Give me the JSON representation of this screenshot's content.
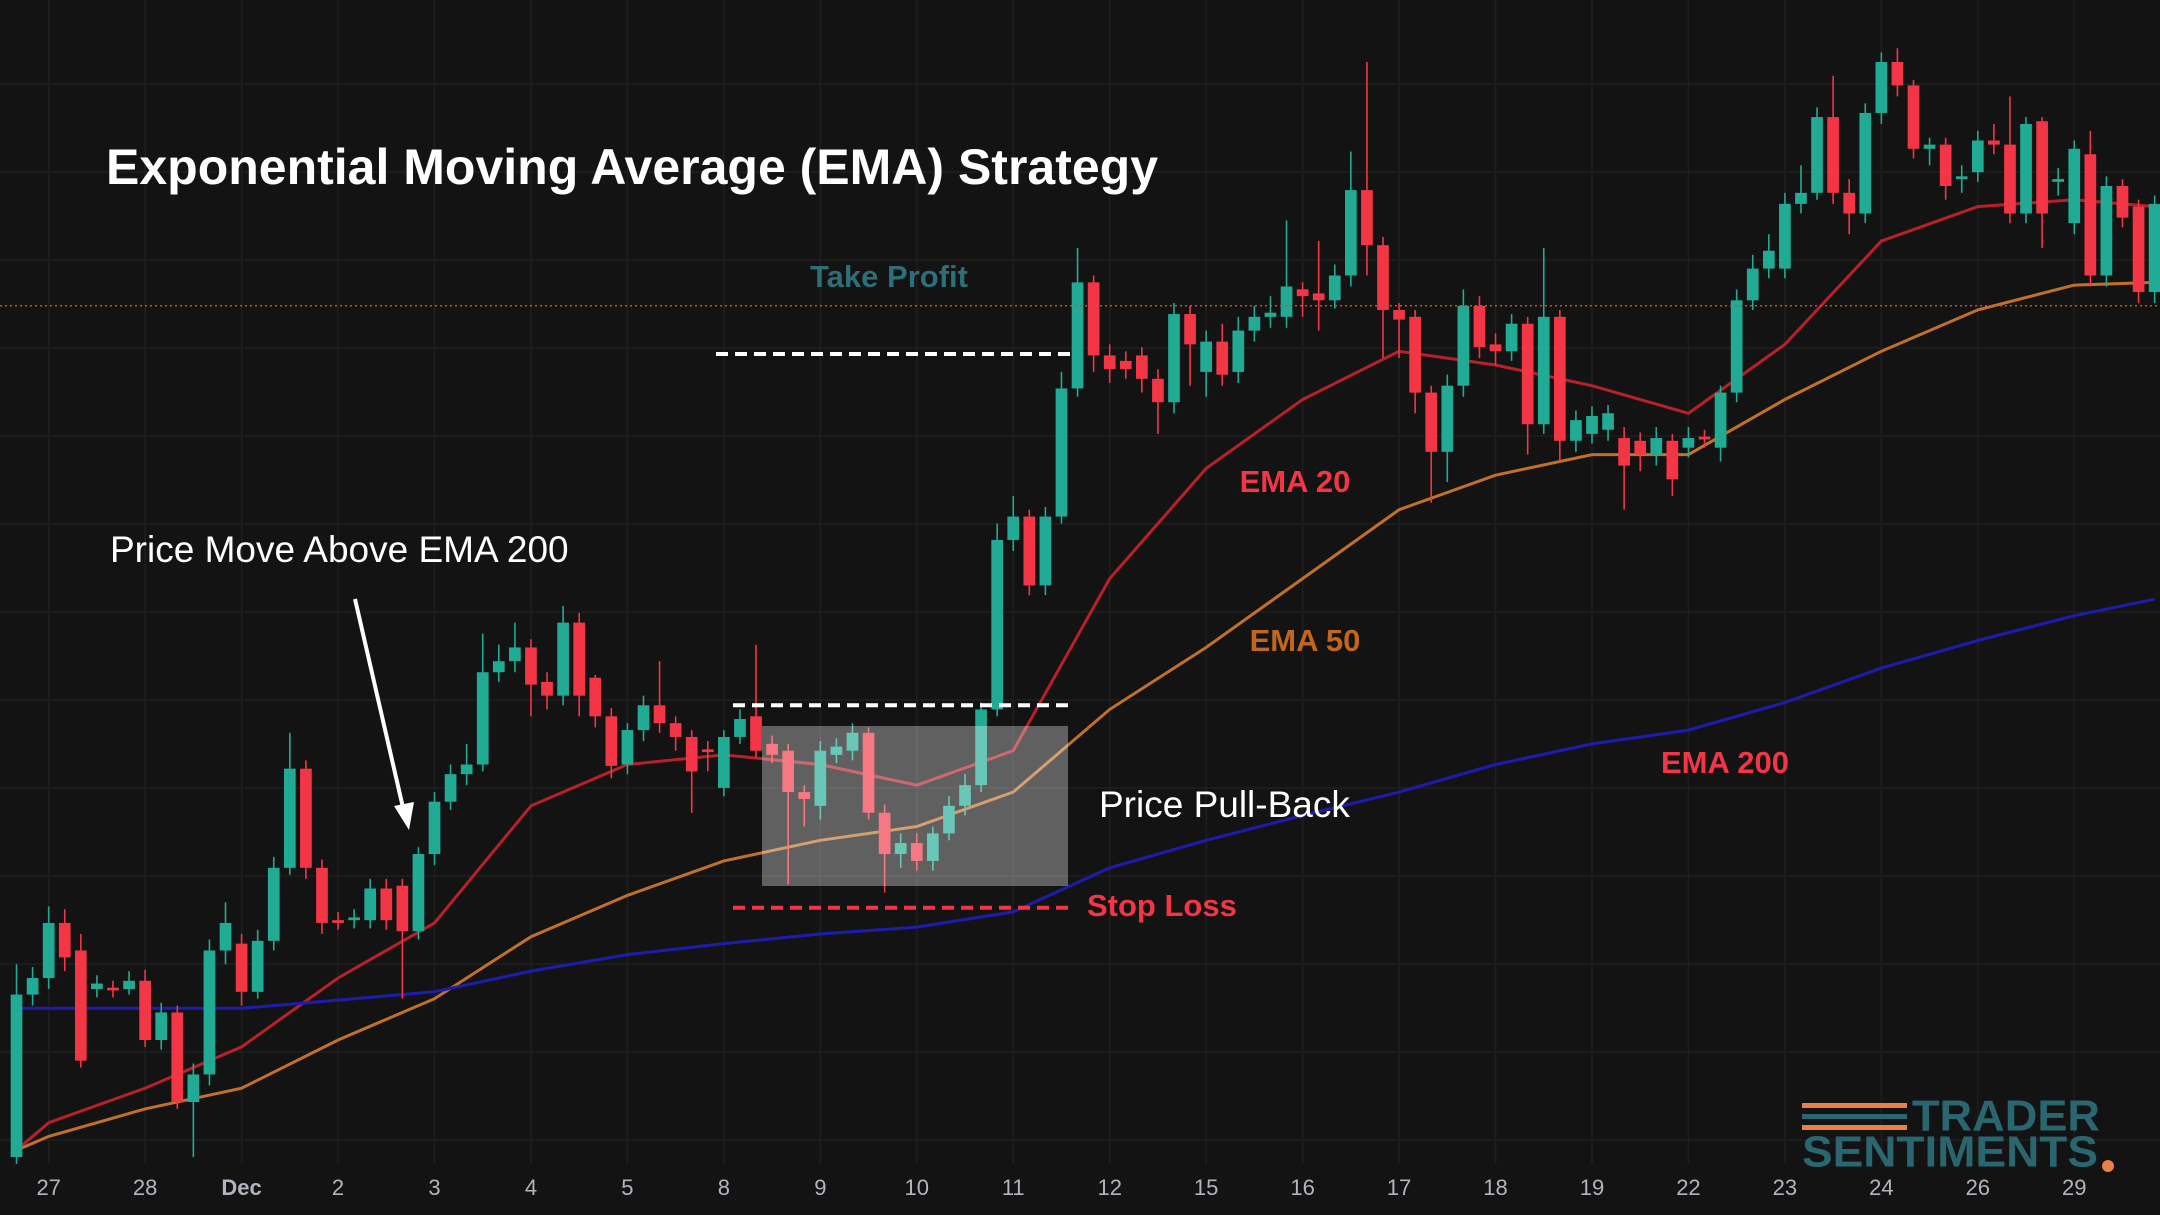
{
  "chart_data": {
    "type": "candlestick",
    "title": "Exponential Moving Average (EMA) Strategy",
    "ylim": [
      55,
      900
    ],
    "categories": [
      null,
      null,
      "27",
      null,
      null,
      null,
      null,
      null,
      "28",
      null,
      null,
      null,
      null,
      null,
      "Dec",
      null,
      null,
      null,
      null,
      null,
      "2",
      null,
      null,
      null,
      null,
      null,
      "3",
      null,
      null,
      null,
      null,
      null,
      "4",
      null,
      null,
      null,
      null,
      null,
      "5",
      null,
      null,
      null,
      null,
      null,
      "8",
      null,
      null,
      null,
      null,
      null,
      "9",
      null,
      null,
      null,
      null,
      null,
      "10",
      null,
      null,
      null,
      null,
      null,
      "11",
      null,
      null,
      null,
      null,
      null,
      "12",
      null,
      null,
      null,
      null,
      null,
      "15",
      null,
      null,
      null,
      null,
      null,
      "16",
      null,
      null,
      null,
      null,
      null,
      "17",
      null,
      null,
      null,
      null,
      null,
      "18",
      null,
      null,
      null,
      null,
      null,
      "19",
      null,
      null,
      null,
      null,
      null,
      "22",
      null,
      null,
      null,
      null,
      null,
      "23",
      null,
      null,
      null,
      null,
      null,
      "24",
      null,
      null,
      null,
      null,
      null,
      "26",
      null,
      null,
      null,
      null,
      null,
      "29",
      null,
      null,
      null,
      null,
      null
    ],
    "open": [
      60,
      178,
      190,
      230,
      210,
      182,
      183,
      182,
      188,
      145,
      165,
      100,
      120,
      210,
      215,
      180,
      217,
      270,
      342,
      270,
      232,
      232,
      232,
      255,
      257,
      224,
      280,
      318,
      338,
      345,
      412,
      420,
      430,
      405,
      395,
      448,
      408,
      380,
      345,
      370,
      388,
      375,
      365,
      356,
      328,
      365,
      380,
      360,
      355,
      325,
      315,
      352,
      355,
      368,
      310,
      280,
      288,
      275,
      295,
      315,
      330,
      385,
      508,
      525,
      475,
      525,
      618,
      695,
      642,
      638,
      642,
      625,
      608,
      672,
      630,
      652,
      630,
      660,
      670,
      670,
      690,
      687,
      682,
      700,
      762,
      722,
      675,
      670,
      615,
      572,
      620,
      678,
      650,
      645,
      665,
      592,
      670,
      580,
      585,
      588,
      582,
      580,
      570,
      580,
      575,
      583,
      575,
      615,
      682,
      705,
      705,
      752,
      760,
      815,
      760,
      745,
      818,
      855,
      838,
      792,
      795,
      770,
      775,
      798,
      795,
      745,
      812,
      768,
      738,
      788,
      700,
      765,
      750,
      688
    ],
    "high": [
      200,
      198,
      242,
      240,
      222,
      192,
      188,
      195,
      196,
      172,
      170,
      128,
      218,
      245,
      222,
      225,
      278,
      368,
      348,
      276,
      238,
      240,
      262,
      262,
      262,
      285,
      325,
      345,
      360,
      440,
      432,
      448,
      436,
      412,
      460,
      455,
      410,
      386,
      375,
      395,
      420,
      380,
      370,
      362,
      370,
      385,
      432,
      366,
      360,
      330,
      362,
      364,
      375,
      372,
      316,
      295,
      295,
      300,
      322,
      338,
      390,
      520,
      540,
      530,
      532,
      630,
      720,
      700,
      650,
      645,
      648,
      632,
      680,
      678,
      660,
      665,
      670,
      678,
      685,
      740,
      695,
      725,
      708,
      790,
      855,
      728,
      680,
      675,
      620,
      628,
      690,
      685,
      658,
      672,
      670,
      720,
      675,
      602,
      605,
      606,
      590,
      586,
      590,
      585,
      590,
      588,
      620,
      690,
      715,
      730,
      760,
      780,
      822,
      845,
      770,
      825,
      862,
      865,
      842,
      800,
      800,
      780,
      805,
      810,
      830,
      815,
      815,
      778,
      798,
      805,
      772,
      770,
      755,
      758
    ],
    "low": [
      55,
      170,
      182,
      195,
      125,
      176,
      176,
      178,
      140,
      138,
      95,
      60,
      112,
      200,
      170,
      175,
      210,
      265,
      262,
      222,
      225,
      226,
      226,
      225,
      175,
      218,
      272,
      312,
      330,
      340,
      405,
      412,
      380,
      385,
      388,
      380,
      372,
      335,
      338,
      362,
      368,
      355,
      310,
      340,
      322,
      360,
      350,
      346,
      258,
      300,
      305,
      346,
      348,
      305,
      252,
      270,
      268,
      268,
      290,
      308,
      325,
      380,
      500,
      468,
      468,
      520,
      612,
      630,
      622,
      625,
      615,
      585,
      600,
      620,
      612,
      620,
      622,
      652,
      662,
      662,
      670,
      660,
      676,
      692,
      700,
      640,
      640,
      600,
      535,
      550,
      612,
      640,
      635,
      638,
      570,
      585,
      565,
      572,
      578,
      580,
      530,
      558,
      562,
      540,
      568,
      575,
      565,
      608,
      675,
      698,
      698,
      745,
      755,
      752,
      730,
      738,
      810,
      830,
      785,
      780,
      755,
      760,
      768,
      788,
      738,
      738,
      720,
      758,
      730,
      692,
      692,
      735,
      680,
      680
    ],
    "close": [
      178,
      190,
      230,
      205,
      130,
      186,
      181,
      188,
      145,
      165,
      100,
      120,
      210,
      230,
      180,
      217,
      270,
      342,
      270,
      230,
      230,
      234,
      255,
      232,
      224,
      280,
      318,
      338,
      345,
      412,
      420,
      430,
      403,
      395,
      448,
      395,
      380,
      344,
      370,
      388,
      375,
      365,
      340,
      354,
      365,
      378,
      355,
      352,
      325,
      320,
      355,
      358,
      368,
      310,
      280,
      288,
      275,
      295,
      315,
      330,
      385,
      508,
      525,
      475,
      525,
      618,
      695,
      642,
      632,
      632,
      625,
      608,
      672,
      650,
      652,
      628,
      660,
      670,
      673,
      692,
      685,
      682,
      700,
      762,
      722,
      675,
      668,
      615,
      572,
      620,
      678,
      648,
      645,
      665,
      592,
      670,
      580,
      595,
      598,
      600,
      562,
      570,
      582,
      552,
      582,
      581,
      615,
      682,
      705,
      718,
      752,
      760,
      815,
      760,
      745,
      818,
      855,
      838,
      792,
      795,
      765,
      772,
      798,
      795,
      745,
      810,
      745,
      770,
      792,
      700,
      765,
      742,
      688,
      752
    ],
    "up_color": "#22ab94",
    "down_color": "#f23645",
    "series": [
      {
        "name": "EMA 20",
        "color": "#b8202a",
        "label_color": "#f23645",
        "x": [
          0,
          2,
          8,
          14,
          20,
          26,
          32,
          38,
          44,
          50,
          56,
          62,
          68,
          74,
          80,
          86,
          92,
          98,
          104,
          110,
          116,
          122,
          128,
          133
        ],
        "values": [
          65,
          85,
          110,
          140,
          190,
          230,
          315,
          345,
          352,
          345,
          330,
          355,
          480,
          560,
          610,
          645,
          635,
          620,
          600,
          650,
          725,
          750,
          755,
          750
        ]
      },
      {
        "name": "EMA 50",
        "color": "#c0702a",
        "label_color": "#c2661c",
        "x": [
          0,
          2,
          8,
          14,
          20,
          26,
          32,
          38,
          44,
          50,
          56,
          62,
          68,
          74,
          80,
          86,
          92,
          98,
          104,
          110,
          116,
          122,
          128,
          133
        ],
        "values": [
          65,
          75,
          95,
          110,
          145,
          175,
          220,
          250,
          275,
          290,
          300,
          325,
          385,
          430,
          480,
          530,
          555,
          570,
          570,
          610,
          645,
          675,
          693,
          695
        ]
      },
      {
        "name": "EMA 200",
        "color": "#1c1cb0",
        "label_color": "#f23645",
        "x": [
          0,
          2,
          8,
          14,
          20,
          26,
          32,
          38,
          44,
          50,
          56,
          62,
          68,
          74,
          80,
          86,
          92,
          98,
          104,
          110,
          116,
          122,
          128,
          133
        ],
        "values": [
          168,
          168,
          168,
          168,
          174,
          180,
          195,
          207,
          215,
          222,
          227,
          238,
          270,
          290,
          308,
          325,
          345,
          360,
          370,
          390,
          415,
          435,
          453,
          465
        ]
      }
    ],
    "levels": [
      {
        "label": "Take Profit",
        "value": 678
      },
      {
        "value": 643
      },
      {
        "value": 388
      },
      {
        "label": "Stop Loss",
        "value": 241
      }
    ],
    "annotations": [
      "Price Move Above EMA 200",
      "Price Pull-Back"
    ],
    "logo": [
      "TRADER",
      "SENTIMENTS"
    ]
  }
}
